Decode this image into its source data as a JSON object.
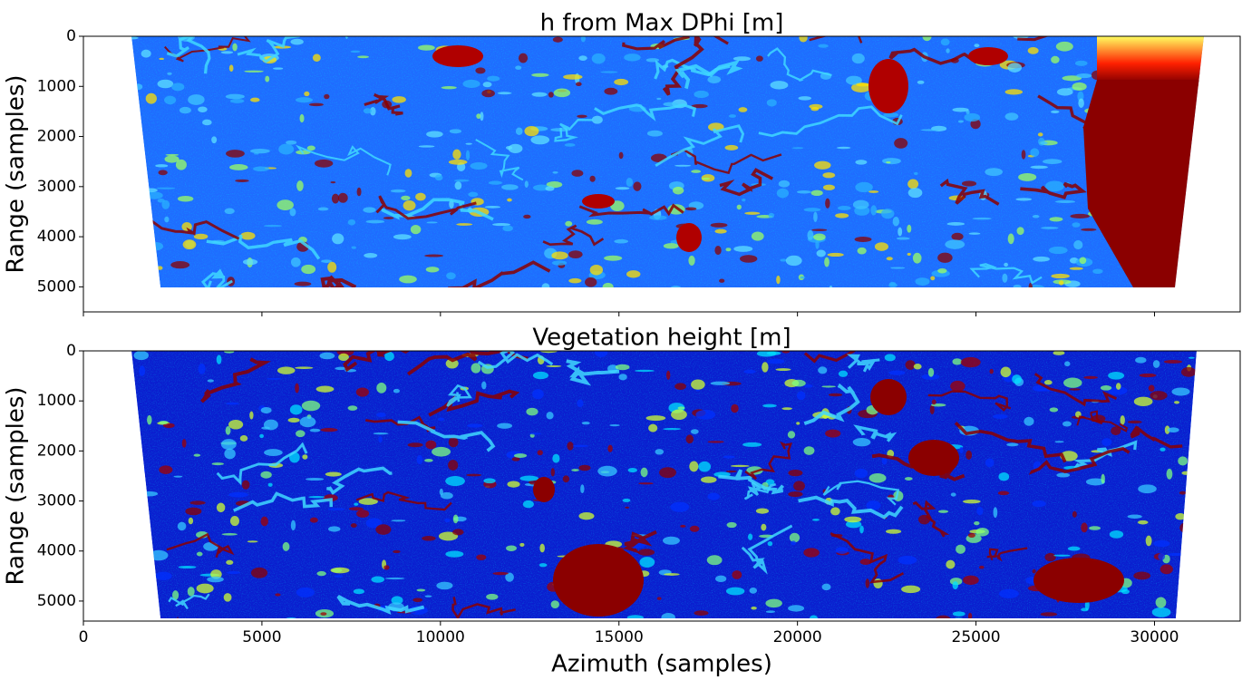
{
  "chart_data": [
    {
      "type": "image",
      "title": "h from Max DPhi [m]",
      "ylabel": "Range (samples)",
      "xlim": [
        0,
        32400
      ],
      "xticks": [
        0,
        5000,
        10000,
        15000,
        20000,
        25000,
        30000
      ],
      "xtick_labels": false,
      "ylim": [
        5500,
        0
      ],
      "yticks": [
        0,
        1000,
        2000,
        3000,
        4000,
        5000
      ],
      "colormap": "jet",
      "base_color": "#1f6cff"
    },
    {
      "type": "image",
      "title": "Vegetation height [m]",
      "ylabel": "Range (samples)",
      "xlabel": "Azimuth (samples)",
      "xlim": [
        0,
        32400
      ],
      "xticks": [
        0,
        5000,
        10000,
        15000,
        20000,
        25000,
        30000
      ],
      "xtick_labels": true,
      "ylim": [
        5400,
        0
      ],
      "yticks": [
        0,
        1000,
        2000,
        3000,
        4000,
        5000
      ],
      "colormap": "jet",
      "base_color": "#0a1ecf"
    }
  ]
}
